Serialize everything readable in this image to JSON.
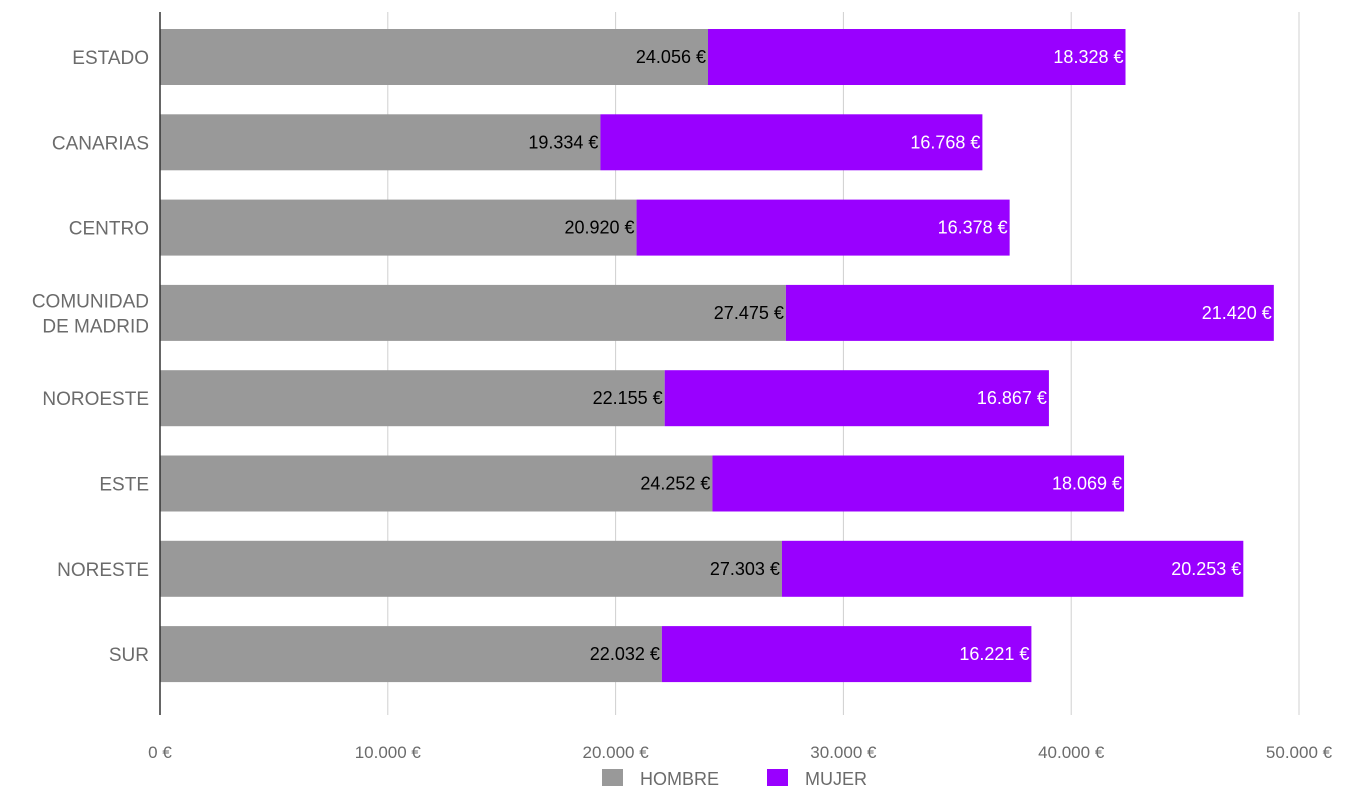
{
  "chart_data": {
    "type": "bar",
    "orientation": "horizontal",
    "stacked": true,
    "categories": [
      [
        "ESTADO"
      ],
      [
        "CANARIAS"
      ],
      [
        "CENTRO"
      ],
      [
        "COMUNIDAD",
        "DE MADRID"
      ],
      [
        "NOROESTE"
      ],
      [
        "ESTE"
      ],
      [
        "NORESTE"
      ],
      [
        "SUR"
      ]
    ],
    "series": [
      {
        "name": "HOMBRE",
        "color": "#999999",
        "label_color": "#000000",
        "values": [
          24056,
          19334,
          20920,
          27475,
          22155,
          24252,
          27303,
          22032
        ],
        "labels": [
          "24.056 €",
          "19.334 €",
          "20.920 €",
          "27.475 €",
          "22.155 €",
          "24.252 €",
          "27.303 €",
          "22.032 €"
        ]
      },
      {
        "name": "MUJER",
        "color": "#9900ff",
        "label_color": "#ffffff",
        "values": [
          18328,
          16768,
          16378,
          21420,
          16867,
          18069,
          20253,
          16221
        ],
        "labels": [
          "18.328 €",
          "16.768 €",
          "16.378 €",
          "21.420 €",
          "16.867 €",
          "18.069 €",
          "20.253 €",
          "16.221 €"
        ]
      }
    ],
    "xlim": [
      0,
      50000
    ],
    "xticks": [
      0,
      10000,
      20000,
      30000,
      40000,
      50000
    ],
    "xtick_labels": [
      "0 €",
      "10.000 €",
      "20.000 €",
      "30.000 €",
      "40.000 €",
      "50.000 €"
    ],
    "grid": true,
    "legend_position": "bottom",
    "title": "",
    "xlabel": "",
    "ylabel": ""
  }
}
